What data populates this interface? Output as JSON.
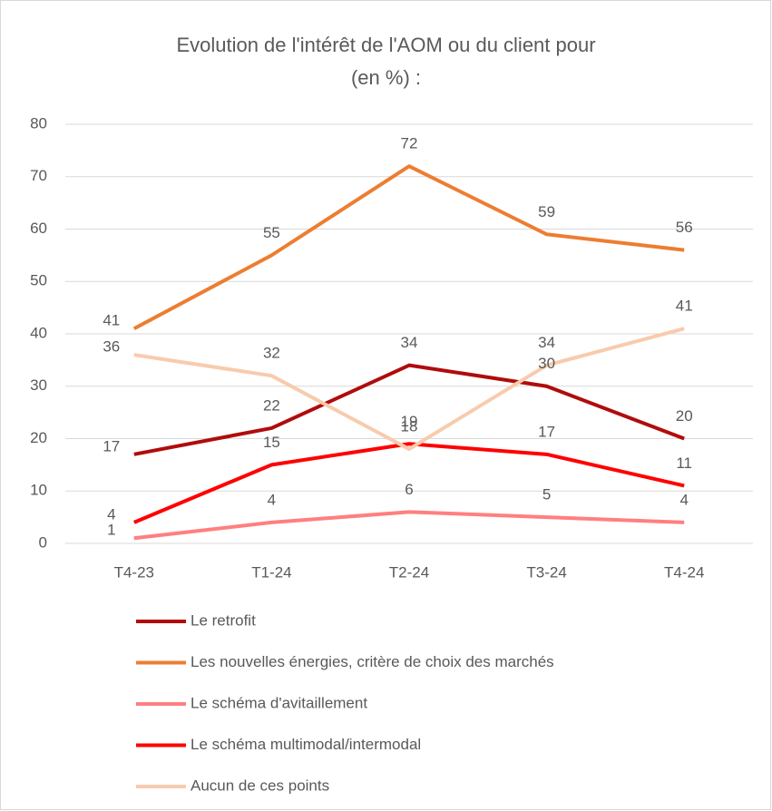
{
  "chart_data": {
    "type": "line",
    "title": "Evolution de l'intérêt de l'AOM ou du client pour (en %) :",
    "categories": [
      "T4-23",
      "T1-24",
      "T2-24",
      "T3-24",
      "T4-24"
    ],
    "series": [
      {
        "name": "Le retrofit",
        "color": "#b00c0c",
        "values": [
          17,
          22,
          34,
          30,
          20
        ]
      },
      {
        "name": "Les nouvelles énergies, critère de choix des marchés",
        "color": "#ed7d31",
        "values": [
          41,
          55,
          72,
          59,
          56
        ]
      },
      {
        "name": "Le schéma d'avitaillement",
        "color": "#ff7f7f",
        "values": [
          1,
          4,
          6,
          5,
          4
        ]
      },
      {
        "name": "Le schéma multimodal/intermodal",
        "color": "#ff0000",
        "values": [
          4,
          15,
          19,
          17,
          11
        ]
      },
      {
        "name": "Aucun de ces points",
        "color": "#f8cbad",
        "values": [
          36,
          32,
          18,
          34,
          41
        ]
      }
    ],
    "ylim": [
      0,
      80
    ],
    "yticks": [
      0,
      10,
      20,
      30,
      40,
      50,
      60,
      70,
      80
    ],
    "grid": true,
    "legend": "bottom"
  }
}
